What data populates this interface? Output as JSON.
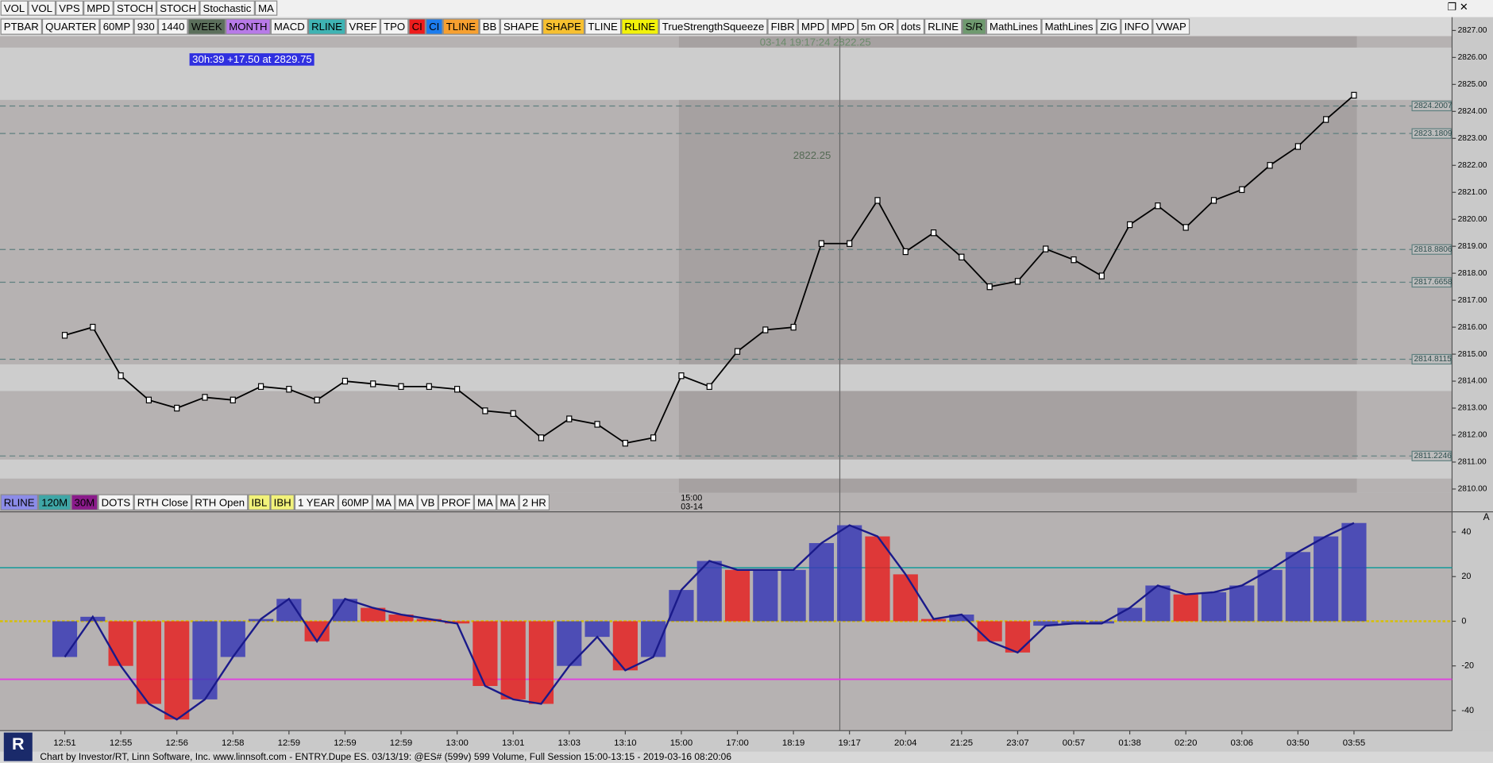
{
  "window_toolbar": {
    "buttons": [
      "VOL",
      "VOL",
      "VPS",
      "MPD",
      "STOCH",
      "STOCH",
      "Stochastic",
      "MA"
    ]
  },
  "chart_toolbar": {
    "buttons": [
      {
        "label": "PTBAR"
      },
      {
        "label": "QUARTER"
      },
      {
        "label": "60MP"
      },
      {
        "label": "930"
      },
      {
        "label": "1440"
      },
      {
        "label": "WEEK",
        "bg": "#5b6f5b"
      },
      {
        "label": "MONTH",
        "bg": "#b77ae8"
      },
      {
        "label": "MACD"
      },
      {
        "label": "RLINE",
        "bg": "#3fb3b3"
      },
      {
        "label": "VREF"
      },
      {
        "label": "TPO"
      },
      {
        "label": "CI",
        "bg": "#ee1c1c"
      },
      {
        "label": "CI",
        "bg": "#1c7cee"
      },
      {
        "label": "TLINE",
        "bg": "#f7a030"
      },
      {
        "label": "BB"
      },
      {
        "label": "SHAPE"
      },
      {
        "label": "SHAPE",
        "bg": "#f7c030"
      },
      {
        "label": "TLINE"
      },
      {
        "label": "RLINE",
        "bg": "#f2f20a"
      },
      {
        "label": "TrueStrengthSqueeze"
      },
      {
        "label": "FIBR"
      },
      {
        "label": "MPD"
      },
      {
        "label": "MPD"
      },
      {
        "label": "5m OR"
      },
      {
        "label": "dots"
      },
      {
        "label": "RLINE"
      },
      {
        "label": "S/R",
        "bg": "#6f9a6f"
      },
      {
        "label": "MathLines"
      },
      {
        "label": "MathLines"
      },
      {
        "label": "ZIG"
      },
      {
        "label": "INFO"
      },
      {
        "label": "VWAP"
      }
    ]
  },
  "indicator_toolbar": {
    "buttons": [
      {
        "label": "RLINE",
        "bg": "#8c8ce8"
      },
      {
        "label": "120M",
        "bg": "#3fa6a6"
      },
      {
        "label": "30M",
        "bg": "#8a1a8a"
      },
      {
        "label": "DOTS"
      },
      {
        "label": "RTH Close"
      },
      {
        "label": "RTH Open"
      },
      {
        "label": "IBL",
        "bg": "#f2f27a"
      },
      {
        "label": "IBH",
        "bg": "#f2f27a"
      },
      {
        "label": "1 YEAR"
      },
      {
        "label": "60MP"
      },
      {
        "label": "MA"
      },
      {
        "label": "MA"
      },
      {
        "label": "VB"
      },
      {
        "label": "PROF"
      },
      {
        "label": "MA"
      },
      {
        "label": "MA"
      },
      {
        "label": "2 HR"
      }
    ]
  },
  "chart_data": [
    {
      "type": "line",
      "categories": [
        "12:51",
        null,
        "12:55",
        null,
        "12:56",
        null,
        "12:58",
        null,
        "12:59",
        null,
        "12:59",
        null,
        "12:59",
        null,
        "13:00",
        null,
        "13:01",
        null,
        "13:03",
        null,
        "13:10",
        null,
        "15:00",
        null,
        "17:00",
        null,
        "18:19",
        null,
        "19:17",
        null,
        "20:04",
        null,
        "21:25",
        null,
        "23:07",
        null,
        "00:57",
        null,
        "01:38",
        null,
        "02:20",
        null,
        "03:06",
        null,
        "03:50",
        null,
        "03:55"
      ],
      "values": [
        2815.7,
        2816.0,
        2814.2,
        2813.3,
        2813.0,
        2813.4,
        2813.3,
        2813.8,
        2813.7,
        2813.3,
        2814.0,
        2813.9,
        2813.8,
        2813.8,
        2813.7,
        2812.9,
        2812.8,
        2811.9,
        2812.6,
        2812.4,
        2811.7,
        2811.9,
        2814.2,
        2813.8,
        2815.1,
        2815.9,
        2816.0,
        2819.1,
        2819.1,
        2820.7,
        2818.8,
        2819.5,
        2818.6,
        2817.5,
        2817.7,
        2818.9,
        2818.5,
        2817.9,
        2819.8,
        2820.5,
        2819.7,
        2820.7,
        2821.1,
        2822.0,
        2822.7,
        2823.7,
        2824.6
      ],
      "color": "#000000",
      "ylim": [
        2809.86,
        2826.79
      ],
      "yticks": [
        {
          "value": 2810,
          "label": "2810.00"
        },
        {
          "value": 2811,
          "label": "2811.00"
        },
        {
          "value": 2812,
          "label": "2812.00"
        },
        {
          "value": 2813,
          "label": "2813.00"
        },
        {
          "value": 2814,
          "label": "2814.00"
        },
        {
          "value": 2815,
          "label": "2815.00"
        },
        {
          "value": 2816,
          "label": "2816.00"
        },
        {
          "value": 2817,
          "label": "2817.00"
        },
        {
          "value": 2818,
          "label": "2818.00"
        },
        {
          "value": 2819,
          "label": "2819.00"
        },
        {
          "value": 2820,
          "label": "2820.00"
        },
        {
          "value": 2821,
          "label": "2821.00"
        },
        {
          "value": 2822,
          "label": "2822.00"
        },
        {
          "value": 2823,
          "label": "2823.00"
        },
        {
          "value": 2824,
          "label": "2824.00"
        },
        {
          "value": 2825,
          "label": "2825.00"
        },
        {
          "value": 2826,
          "label": "2826.00"
        },
        {
          "value": 2827,
          "label": "2827.00"
        }
      ],
      "levels": [
        2824.2007,
        2823.1809,
        2818.8806,
        2817.6658,
        2814.8115,
        2811.2246
      ],
      "level_color": "#5f7f7f",
      "annotations": {
        "summary": "30h:39  +17.50 at 2829.75",
        "cursor": "03-14 19:17:24 2822.25",
        "cursor_price": "2822.25",
        "session_time": "15:00",
        "session_date": "03-14"
      }
    },
    {
      "type": "bar",
      "values": [
        -16,
        2,
        -20,
        -37,
        -44,
        -35,
        -16,
        1,
        10,
        -9,
        10,
        6,
        3,
        1,
        -1,
        -29,
        -35,
        -37,
        -20,
        -7,
        -22,
        -16,
        14,
        27,
        23,
        23,
        23,
        35,
        43,
        38,
        21,
        1,
        3,
        -9,
        -14,
        -2,
        -1,
        -1,
        6,
        16,
        12,
        13,
        16,
        23,
        31,
        38,
        44
      ],
      "color": "#3b3bb5",
      "down_color": "#e52222",
      "line_color": "#1a1a8a",
      "ylim": [
        -49,
        49
      ],
      "yticks": [
        -40,
        -20,
        0,
        20,
        40
      ],
      "reference_lines": [
        {
          "value": 24,
          "color": "#2a9d9d"
        },
        {
          "value": -26,
          "color": "#e040e0"
        }
      ],
      "corner_label": "A"
    }
  ],
  "status_bar": "Chart by Investor/RT, Linn Software, Inc. www.linnsoft.com - ENTRY.Dupe ES.    03/13/19: @ES# (599v) 599 Volume, Full Session 15:00-13:15 - 2019-03-16 08:20:06"
}
